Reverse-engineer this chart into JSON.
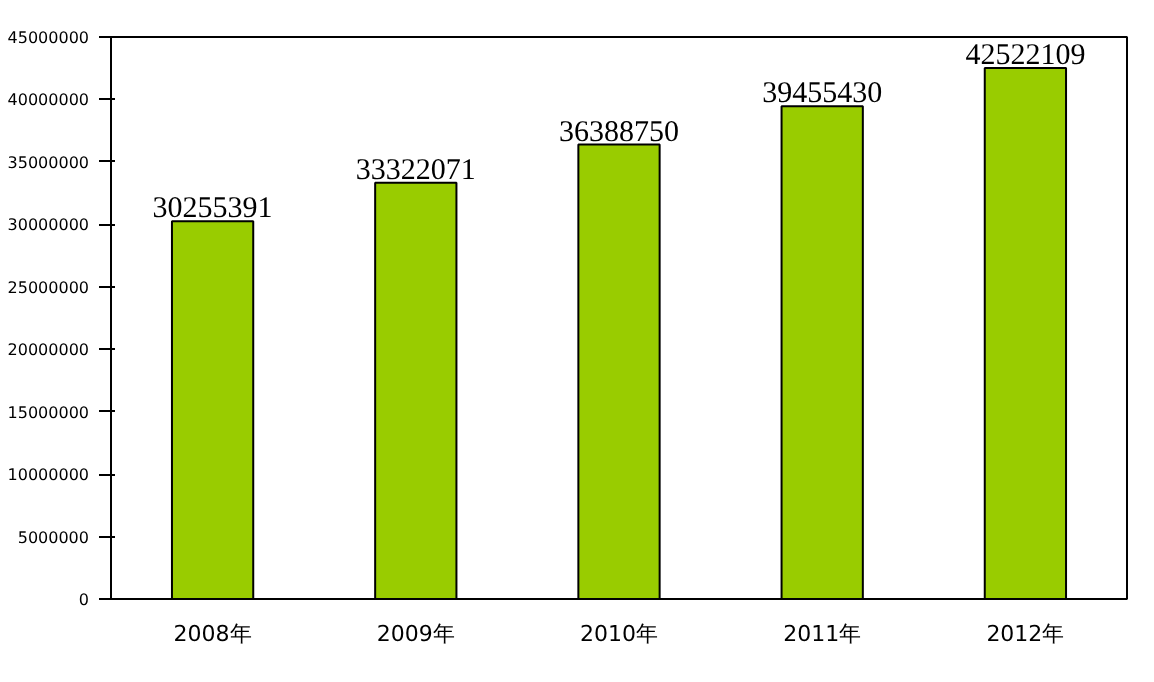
{
  "chart_data": {
    "type": "bar",
    "categories": [
      "2008年",
      "2009年",
      "2010年",
      "2011年",
      "2012年"
    ],
    "values": [
      30255391,
      33322071,
      36388750,
      39455430,
      42522109
    ],
    "color": "#99cc00",
    "data_labels": true,
    "ylim": [
      0,
      45000000
    ],
    "yticks": [
      0,
      5000000,
      10000000,
      15000000,
      20000000,
      25000000,
      30000000,
      35000000,
      40000000,
      45000000
    ],
    "grid": false
  }
}
